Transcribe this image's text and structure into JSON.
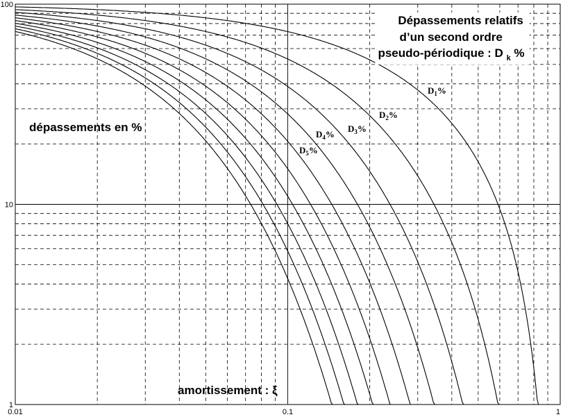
{
  "chart_data": {
    "type": "line",
    "title_lines": [
      "Dépassements relatifs",
      "d’un second ordre",
      "pseudo-périodique : D"
    ],
    "title_sub": "k",
    "title_end": "%",
    "ylabel": "dépassements en %",
    "xlabel": "amortissement : ξ",
    "xscale": "log",
    "yscale": "log",
    "xlim": [
      0.01,
      1
    ],
    "ylim": [
      1,
      100
    ],
    "grid": true,
    "x_ticks": [
      "0.01",
      "0.1",
      "1"
    ],
    "y_ticks": [
      "1",
      "10",
      "100"
    ],
    "series": [
      {
        "name": "D1%",
        "letter": "D",
        "sub": "1",
        "suffix": "%",
        "k": 1,
        "values": [
          [
            0.01,
            96.9
          ],
          [
            0.02,
            93.9
          ],
          [
            0.05,
            85.4
          ],
          [
            0.1,
            72.9
          ],
          [
            0.2,
            52.7
          ],
          [
            0.3,
            37.2
          ],
          [
            0.4,
            25.4
          ],
          [
            0.5,
            16.3
          ],
          [
            0.6,
            9.5
          ],
          [
            0.7,
            4.6
          ],
          [
            0.8,
            1.5
          ]
        ]
      },
      {
        "name": "D2%",
        "letter": "D",
        "sub": "2",
        "suffix": "%",
        "k": 2,
        "values": [
          [
            0.01,
            93.9
          ],
          [
            0.02,
            88.2
          ],
          [
            0.05,
            72.9
          ],
          [
            0.1,
            53.1
          ],
          [
            0.2,
            27.8
          ],
          [
            0.3,
            13.9
          ],
          [
            0.4,
            6.4
          ],
          [
            0.5,
            2.7
          ]
        ]
      },
      {
        "name": "D3%",
        "letter": "D",
        "sub": "3",
        "suffix": "%",
        "k": 3,
        "values": [
          [
            0.01,
            91.0
          ],
          [
            0.02,
            82.8
          ],
          [
            0.05,
            62.3
          ],
          [
            0.1,
            38.7
          ],
          [
            0.2,
            14.6
          ],
          [
            0.3,
            5.2
          ],
          [
            0.4,
            1.6
          ]
        ]
      },
      {
        "name": "D4%",
        "letter": "D",
        "sub": "4",
        "suffix": "%",
        "k": 4,
        "values": [
          [
            0.01,
            88.2
          ],
          [
            0.02,
            77.7
          ],
          [
            0.05,
            53.1
          ],
          [
            0.1,
            28.2
          ],
          [
            0.2,
            7.7
          ],
          [
            0.3,
            1.9
          ]
        ]
      },
      {
        "name": "D5%",
        "letter": "D",
        "sub": "5",
        "suffix": "%",
        "k": 5,
        "values": [
          [
            0.01,
            85.4
          ],
          [
            0.02,
            72.9
          ],
          [
            0.05,
            45.4
          ],
          [
            0.1,
            20.6
          ],
          [
            0.2,
            4.1
          ]
        ]
      },
      {
        "name": "",
        "k": 6,
        "values": [
          [
            0.01,
            82.8
          ],
          [
            0.02,
            68.4
          ],
          [
            0.05,
            38.7
          ],
          [
            0.1,
            15.0
          ],
          [
            0.2,
            2.1
          ]
        ]
      },
      {
        "name": "",
        "k": 7,
        "values": [
          [
            0.01,
            80.2
          ],
          [
            0.02,
            64.2
          ],
          [
            0.05,
            33.0
          ],
          [
            0.1,
            10.9
          ],
          [
            0.2,
            1.1
          ]
        ]
      },
      {
        "name": "",
        "k": 8,
        "values": [
          [
            0.01,
            77.7
          ],
          [
            0.02,
            60.3
          ],
          [
            0.05,
            28.2
          ],
          [
            0.1,
            8.0
          ]
        ]
      },
      {
        "name": "",
        "k": 9,
        "values": [
          [
            0.01,
            75.3
          ],
          [
            0.02,
            56.6
          ],
          [
            0.05,
            24.1
          ],
          [
            0.1,
            5.8
          ]
        ]
      },
      {
        "name": "",
        "k": 10,
        "values": [
          [
            0.01,
            73.0
          ],
          [
            0.02,
            53.1
          ],
          [
            0.05,
            20.6
          ],
          [
            0.1,
            4.2
          ]
        ]
      }
    ]
  }
}
